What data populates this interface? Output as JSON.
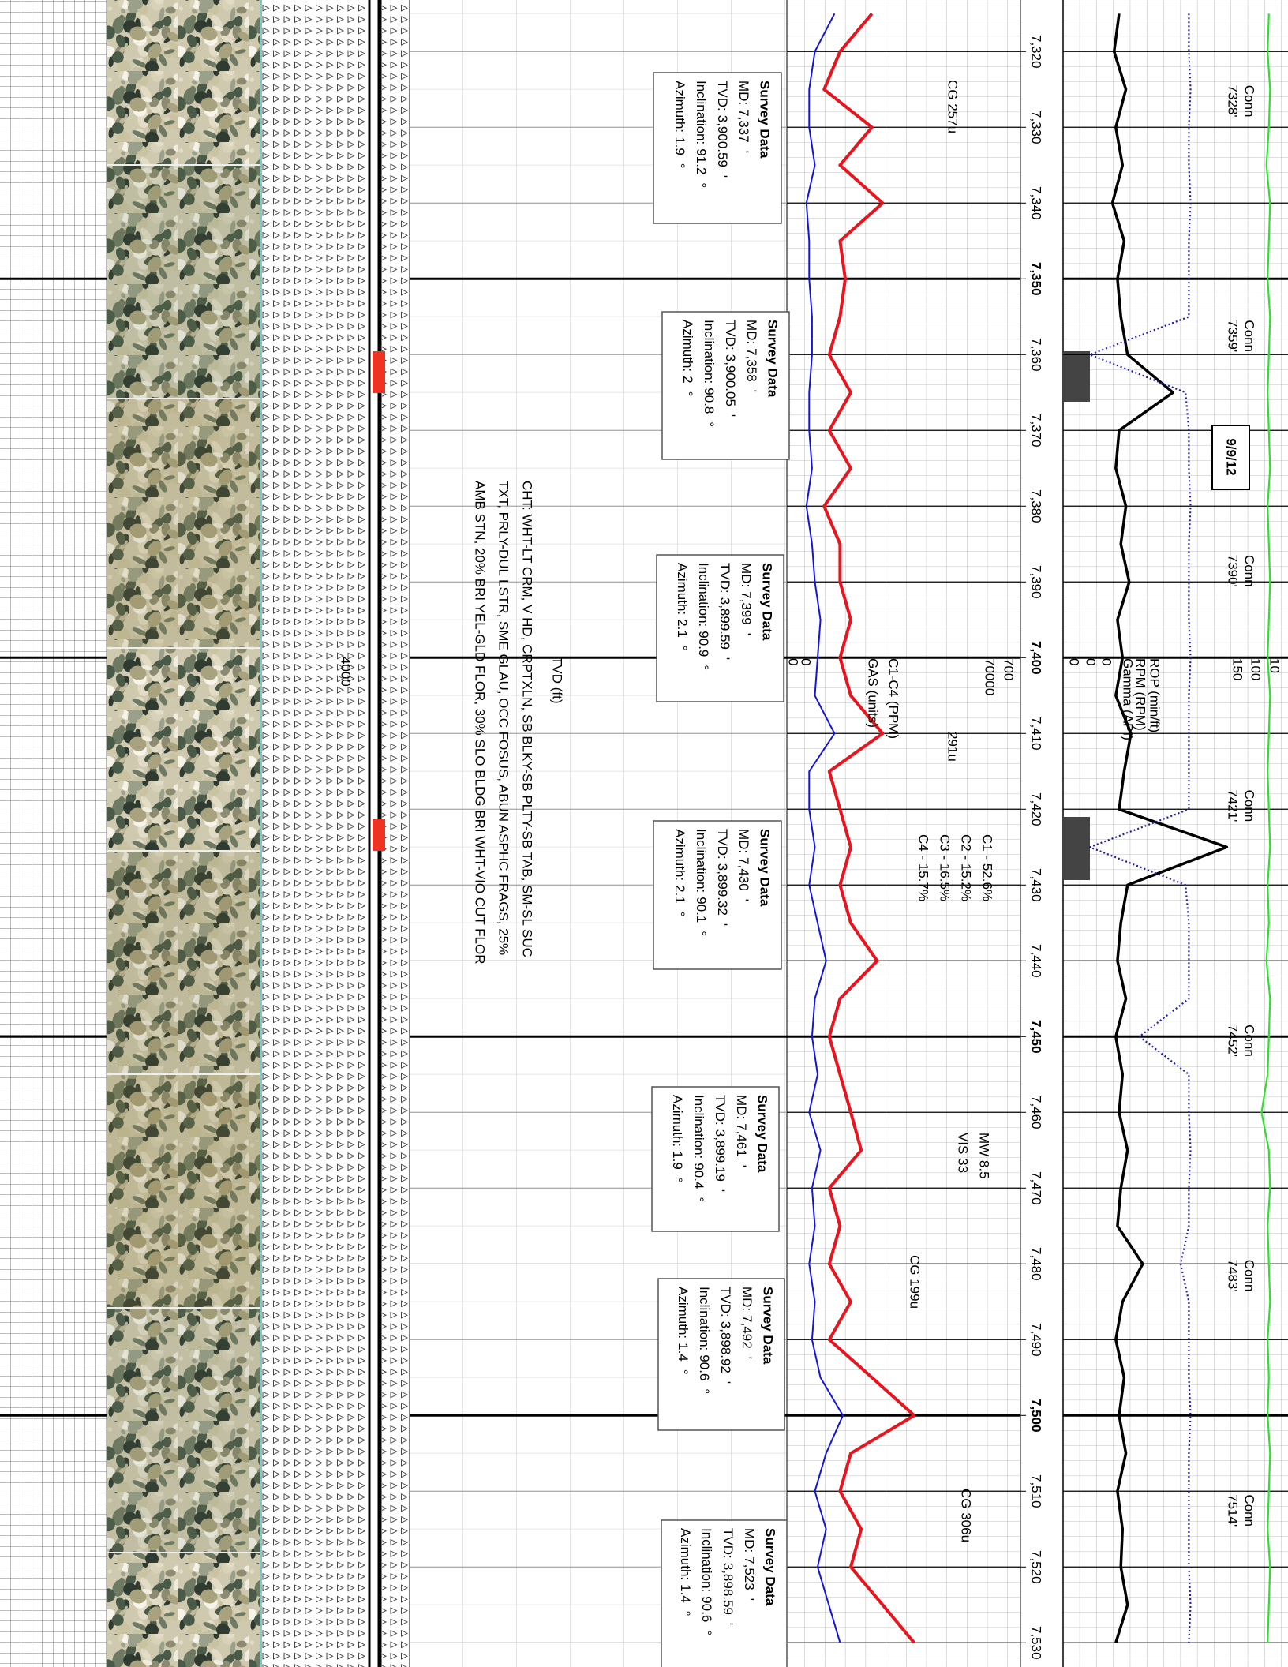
{
  "chart_data": {
    "type": "line",
    "ylim": [
      7313.2,
      7533.2
    ],
    "yticks": [
      {
        "value": 7320,
        "label": "7,320"
      },
      {
        "value": 7330,
        "label": "7,330"
      },
      {
        "value": 7340,
        "label": "7,340"
      },
      {
        "value": 7350,
        "label": "7,350"
      },
      {
        "value": 7360,
        "label": "7,360"
      },
      {
        "value": 7370,
        "label": "7,370"
      },
      {
        "value": 7380,
        "label": "7,380"
      },
      {
        "value": 7390,
        "label": "7,390"
      },
      {
        "value": 7400,
        "label": "7,400"
      },
      {
        "value": 7410,
        "label": "7,410"
      },
      {
        "value": 7420,
        "label": "7,420"
      },
      {
        "value": 7430,
        "label": "7,430"
      },
      {
        "value": 7440,
        "label": "7,440"
      },
      {
        "value": 7450,
        "label": "7,450"
      },
      {
        "value": 7460,
        "label": "7,460"
      },
      {
        "value": 7470,
        "label": "7,470"
      },
      {
        "value": 7480,
        "label": "7,480"
      },
      {
        "value": 7490,
        "label": "7,490"
      },
      {
        "value": 7500,
        "label": "7,500"
      },
      {
        "value": 7510,
        "label": "7,510"
      },
      {
        "value": 7520,
        "label": "7,520"
      },
      {
        "value": 7530,
        "label": "7,530"
      }
    ],
    "tvd_label": "TVD (ft)",
    "tvd_ticks": [
      4000
    ],
    "depths": [
      7315,
      7320,
      7325,
      7330,
      7335,
      7340,
      7345,
      7350,
      7355,
      7360,
      7365,
      7370,
      7375,
      7380,
      7385,
      7390,
      7395,
      7400,
      7405,
      7410,
      7415,
      7420,
      7425,
      7430,
      7435,
      7440,
      7445,
      7450,
      7455,
      7460,
      7465,
      7470,
      7475,
      7480,
      7485,
      7490,
      7495,
      7500,
      7505,
      7510,
      7515,
      7520,
      7525,
      7530
    ],
    "series": [
      {
        "name": "GAS (units)",
        "color": "#e8141e",
        "xlim": [
          0,
          700
        ],
        "xticks": [
          0,
          700
        ],
        "values": [
          231,
          121,
          66,
          231,
          121,
          268,
          121,
          139,
          121,
          84,
          158,
          84,
          158,
          66,
          121,
          121,
          158,
          121,
          158,
          268,
          84,
          121,
          158,
          121,
          158,
          249,
          121,
          84,
          121,
          158,
          194,
          84,
          121,
          84,
          158,
          84,
          231,
          377,
          158,
          121,
          194,
          158,
          268,
          377
        ]
      },
      {
        "name": "C1-C4 (PPM)",
        "color": "#1414e0",
        "xlim": [
          0,
          70000
        ],
        "xticks": [
          0,
          70000
        ],
        "values": [
          15000,
          8000,
          6000,
          6000,
          8000,
          5000,
          6000,
          6000,
          7000,
          7000,
          6000,
          6000,
          7000,
          5000,
          7000,
          8000,
          10000,
          9000,
          8000,
          15000,
          6000,
          6000,
          8000,
          6000,
          9000,
          12000,
          8000,
          7000,
          9000,
          6000,
          10000,
          7000,
          8000,
          6000,
          8000,
          7000,
          10000,
          18000,
          12000,
          8000,
          12000,
          9000,
          13000,
          17000
        ]
      },
      {
        "name": "ROP (min/ft)",
        "color": "#000000",
        "xlim": [
          0,
          10
        ],
        "xticks": [
          0,
          10
        ],
        "values": [
          0.8,
          0.5,
          1.2,
          0.6,
          1.0,
          0.4,
          1.1,
          0.7,
          0.9,
          1.3,
          4.0,
          0.8,
          0.6,
          1.2,
          0.9,
          1.4,
          0.7,
          1.0,
          0.6,
          1.5,
          1.1,
          0.8,
          7.2,
          1.3,
          0.9,
          0.7,
          1.2,
          0.6,
          1.0,
          0.8,
          1.3,
          0.9,
          0.7,
          2.2,
          1.0,
          0.6,
          1.1,
          0.8,
          1.2,
          0.7,
          1.0,
          0.9,
          1.3,
          0.6
        ]
      },
      {
        "name": "RPM (RPM)",
        "color": "#1a1ab8",
        "xlim": [
          0,
          100
        ],
        "xticks": [
          0,
          100
        ],
        "values": [
          60,
          60,
          61,
          60,
          60,
          61,
          60,
          60,
          60,
          0,
          58,
          60,
          60,
          61,
          60,
          60,
          60,
          61,
          60,
          60,
          60,
          60,
          0,
          58,
          60,
          60,
          60,
          30,
          60,
          60,
          61,
          60,
          60,
          55,
          60,
          60,
          60,
          61,
          60,
          60,
          60,
          60,
          61,
          60
        ]
      },
      {
        "name": "Gamma (API)",
        "color": "#2ee02e",
        "xlim": [
          0,
          150
        ],
        "xticks": [
          0,
          150
        ],
        "values": [
          146,
          145,
          147,
          146,
          144,
          147,
          146,
          145,
          147,
          146,
          145,
          146,
          147,
          145,
          146,
          147,
          146,
          145,
          147,
          146,
          145,
          146,
          147,
          145,
          146,
          144,
          147,
          146,
          145,
          140,
          146,
          147,
          145,
          146,
          147,
          145,
          146,
          145,
          147,
          146,
          145,
          147,
          146,
          145
        ]
      }
    ],
    "gas_breakdown": [
      "C1 - 52.6%",
      "C2 - 15.2%",
      "C3 - 16.5%",
      "C4 - 15.7%"
    ],
    "annotations": [
      "CG 257u",
      "291u",
      "CG 199u",
      "CG 306u",
      "MW 8.5",
      "VIS 33"
    ],
    "connection_word": "Conn",
    "connections": [
      {
        "value": 7328,
        "label": "7328'"
      },
      {
        "value": 7359,
        "label": "7359'"
      },
      {
        "value": 7390,
        "label": "7390'"
      },
      {
        "value": 7421,
        "label": "7421'"
      },
      {
        "value": 7452,
        "label": "7452'"
      },
      {
        "value": 7483,
        "label": "7483'"
      },
      {
        "value": 7514,
        "label": "7514'"
      }
    ],
    "date": "9/9/12",
    "description": [
      "CHT: WHT-LT CRM, V HD, CRPTXLN, SB BLKY-SB PLTY-SB TAB, SM-SL SUC",
      "TXT, PRLY-DUL LSTR, SME GLAU, OCC FOSUS, ABUN ASPHC FRAGS, 25%",
      "AMB STN, 20% BRI YEL-GLD FLOR, 30% SLO BLDG BRI WHT-VIO CUT FLOR"
    ],
    "survey_title": "Survey Data",
    "survey_fields": [
      "MD:",
      "TVD:",
      "Inclination:",
      "Azimuth:"
    ],
    "survey_units": [
      "'",
      "'",
      "°",
      "°"
    ],
    "surveys": [
      [
        "7,337",
        "3,900.59",
        "91.2",
        "1.9"
      ],
      [
        "7,358",
        "3,900.05",
        "90.8",
        "2"
      ],
      [
        "7,399",
        "3,899.59",
        "90.9",
        "2.1"
      ],
      [
        "7,430",
        "3,899.32",
        "90.1",
        "2.1"
      ],
      [
        "7,461",
        "3,899.19",
        "90.4",
        "1.9"
      ],
      [
        "7,492",
        "3,898.92",
        "90.6",
        "1.4"
      ],
      [
        "7,523",
        "3,898.59",
        "90.6",
        "1.4"
      ]
    ]
  }
}
